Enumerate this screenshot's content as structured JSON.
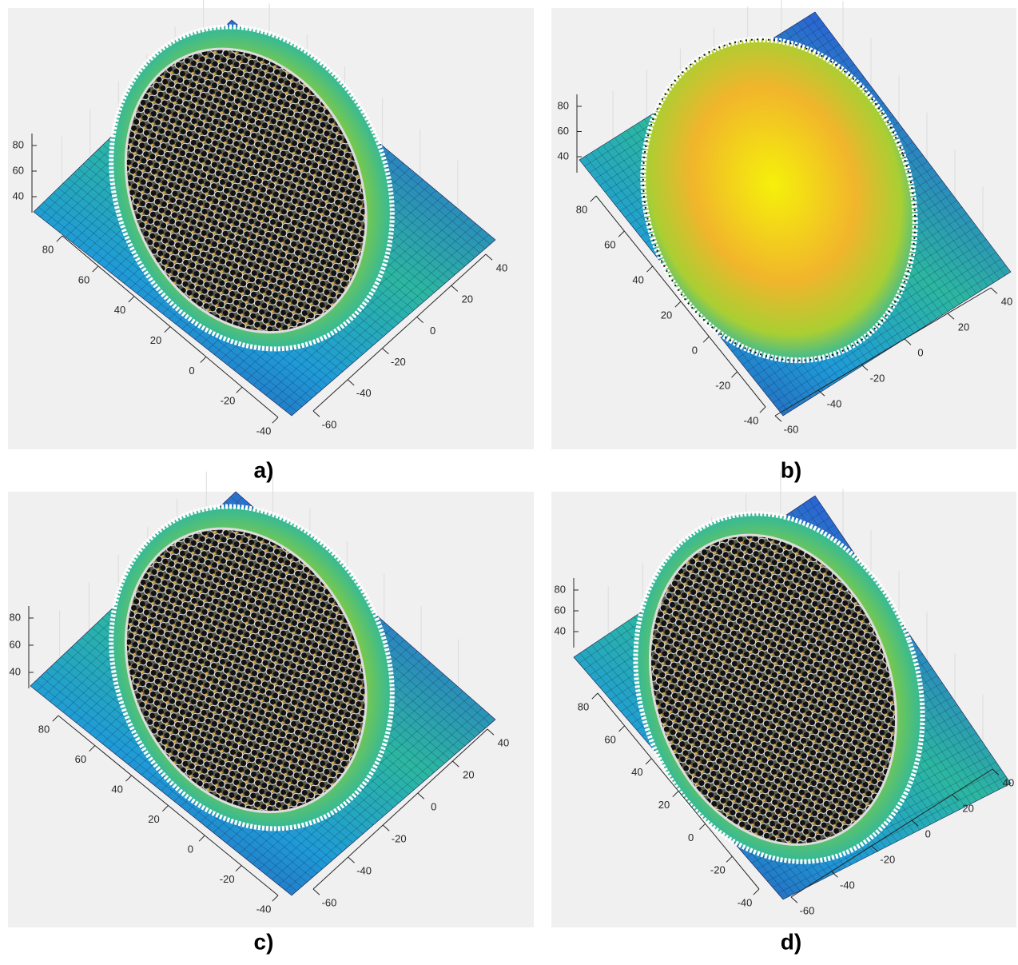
{
  "chart_data": [
    {
      "type": "surface",
      "caption": "a)",
      "xlim": [
        -40,
        80
      ],
      "xticks": [
        80,
        60,
        40,
        20,
        0,
        -20,
        -40
      ],
      "ylim": [
        -60,
        40
      ],
      "yticks": [
        40,
        20,
        0,
        -20,
        -40,
        -60
      ],
      "zlim": [
        40,
        80
      ],
      "zticks": [
        40,
        60,
        80
      ]
    },
    {
      "type": "surface",
      "caption": "b)",
      "xlim": [
        -40,
        80
      ],
      "xticks": [
        80,
        60,
        40,
        20,
        0,
        -20,
        -40
      ],
      "ylim": [
        -60,
        40
      ],
      "yticks": [
        40,
        20,
        0,
        -20,
        -40,
        -60
      ],
      "zlim": [
        40,
        80
      ],
      "zticks": [
        40,
        60,
        80
      ]
    },
    {
      "type": "surface",
      "caption": "c)",
      "xlim": [
        -40,
        80
      ],
      "xticks": [
        80,
        60,
        40,
        20,
        0,
        -20,
        -40
      ],
      "ylim": [
        -60,
        40
      ],
      "yticks": [
        40,
        20,
        0,
        -20,
        -40,
        -60
      ],
      "zlim": [
        40,
        80
      ],
      "zticks": [
        40,
        60,
        80
      ]
    },
    {
      "type": "surface",
      "caption": "d)",
      "xlim": [
        -40,
        80
      ],
      "xticks": [
        80,
        60,
        40,
        20,
        0,
        -20,
        -40
      ],
      "ylim": [
        -60,
        40
      ],
      "yticks": [
        40,
        20,
        0,
        -20,
        -40,
        -60
      ],
      "zlim": [
        40,
        80
      ],
      "zticks": [
        40,
        60,
        80
      ]
    }
  ]
}
